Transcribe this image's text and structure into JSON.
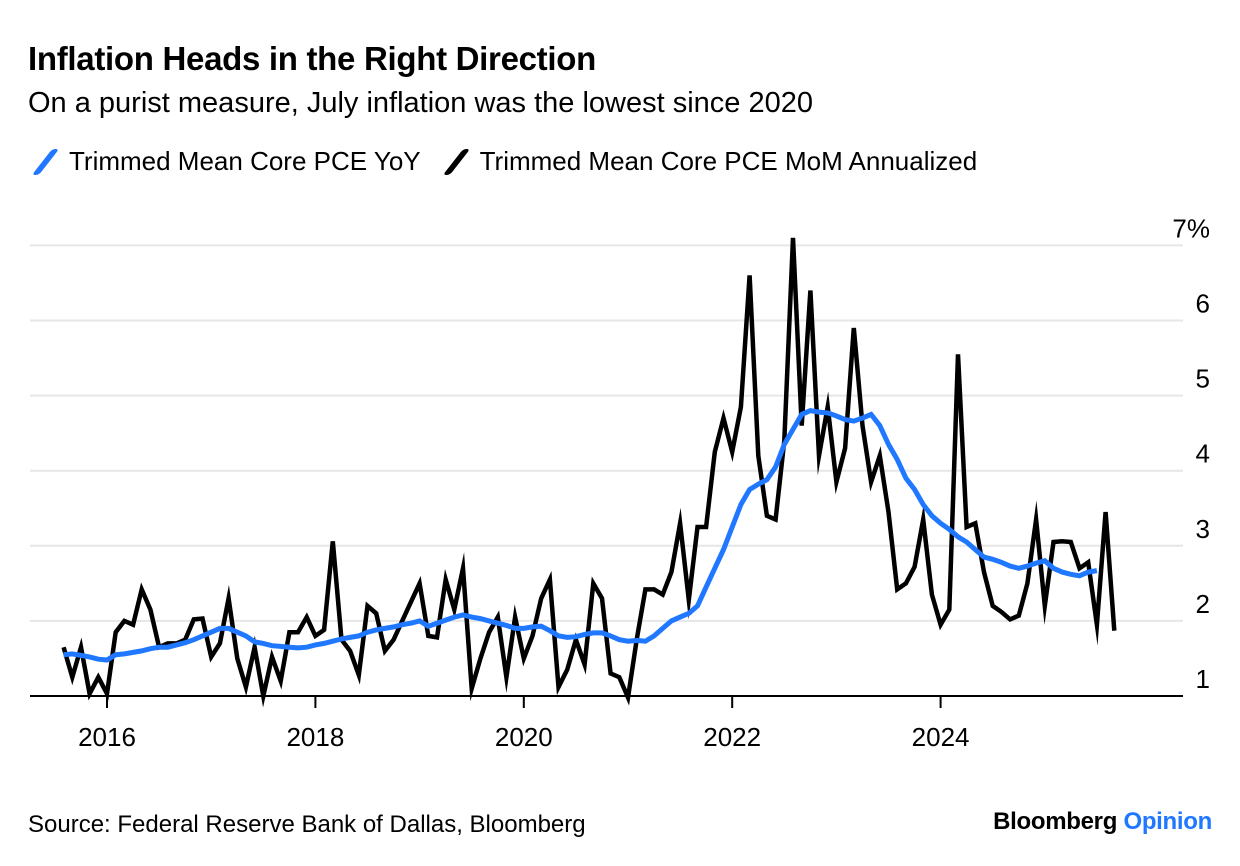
{
  "title": "Inflation Heads in the Right Direction",
  "subtitle": "On a purist measure, July inflation was the lowest since 2020",
  "footer": {
    "source": "Source: Federal Reserve Bank of Dallas, Bloomberg",
    "brand_primary": "Bloomberg",
    "brand_accent": "Opinion"
  },
  "colors": {
    "yoy": "#1f78ff",
    "mom": "#000000",
    "grid": "#e6e6e6",
    "axis": "#000000",
    "brand_accent": "#1f78ff"
  },
  "chart_data": {
    "type": "line",
    "title": "Inflation Heads in the Right Direction",
    "subtitle": "On a purist measure, July inflation was the lowest since 2020",
    "x_axis": {
      "type": "date",
      "range": [
        "2015-08",
        "2025-12"
      ],
      "ticks": [
        2016,
        2018,
        2020,
        2022,
        2024
      ]
    },
    "y_axis": {
      "side": "right",
      "range": [
        1,
        7
      ],
      "ticks": [
        1,
        2,
        3,
        4,
        5,
        6,
        7
      ],
      "tick_labels": [
        "1",
        "2",
        "3",
        "4",
        "5",
        "6",
        "7%"
      ]
    },
    "grid": true,
    "legend": "top-left",
    "series": [
      {
        "name": "Trimmed Mean Core PCE YoY",
        "color": "#1f78ff",
        "points": [
          [
            "2015-08",
            1.55
          ],
          [
            "2015-09",
            1.56
          ],
          [
            "2015-10",
            1.54
          ],
          [
            "2015-11",
            1.52
          ],
          [
            "2015-12",
            1.49
          ],
          [
            "2016-01",
            1.48
          ],
          [
            "2016-02",
            1.55
          ],
          [
            "2016-03",
            1.56
          ],
          [
            "2016-04",
            1.58
          ],
          [
            "2016-05",
            1.6
          ],
          [
            "2016-06",
            1.63
          ],
          [
            "2016-07",
            1.65
          ],
          [
            "2016-08",
            1.65
          ],
          [
            "2016-09",
            1.68
          ],
          [
            "2016-10",
            1.71
          ],
          [
            "2016-11",
            1.75
          ],
          [
            "2016-12",
            1.8
          ],
          [
            "2017-01",
            1.85
          ],
          [
            "2017-02",
            1.9
          ],
          [
            "2017-03",
            1.9
          ],
          [
            "2017-04",
            1.85
          ],
          [
            "2017-05",
            1.8
          ],
          [
            "2017-06",
            1.72
          ],
          [
            "2017-07",
            1.7
          ],
          [
            "2017-08",
            1.67
          ],
          [
            "2017-09",
            1.66
          ],
          [
            "2017-10",
            1.65
          ],
          [
            "2017-11",
            1.64
          ],
          [
            "2017-12",
            1.65
          ],
          [
            "2018-01",
            1.68
          ],
          [
            "2018-02",
            1.7
          ],
          [
            "2018-03",
            1.73
          ],
          [
            "2018-04",
            1.76
          ],
          [
            "2018-05",
            1.78
          ],
          [
            "2018-06",
            1.8
          ],
          [
            "2018-07",
            1.85
          ],
          [
            "2018-08",
            1.88
          ],
          [
            "2018-09",
            1.9
          ],
          [
            "2018-10",
            1.92
          ],
          [
            "2018-11",
            1.95
          ],
          [
            "2018-12",
            1.97
          ],
          [
            "2019-01",
            2.0
          ],
          [
            "2019-02",
            1.93
          ],
          [
            "2019-03",
            1.97
          ],
          [
            "2019-04",
            2.01
          ],
          [
            "2019-05",
            2.05
          ],
          [
            "2019-06",
            2.08
          ],
          [
            "2019-07",
            2.05
          ],
          [
            "2019-08",
            2.03
          ],
          [
            "2019-09",
            2.0
          ],
          [
            "2019-10",
            1.97
          ],
          [
            "2019-11",
            1.94
          ],
          [
            "2019-12",
            1.9
          ],
          [
            "2020-01",
            1.9
          ],
          [
            "2020-02",
            1.92
          ],
          [
            "2020-03",
            1.93
          ],
          [
            "2020-04",
            1.87
          ],
          [
            "2020-05",
            1.8
          ],
          [
            "2020-06",
            1.78
          ],
          [
            "2020-07",
            1.79
          ],
          [
            "2020-08",
            1.82
          ],
          [
            "2020-09",
            1.84
          ],
          [
            "2020-10",
            1.84
          ],
          [
            "2020-11",
            1.8
          ],
          [
            "2020-12",
            1.75
          ],
          [
            "2021-01",
            1.73
          ],
          [
            "2021-02",
            1.74
          ],
          [
            "2021-03",
            1.73
          ],
          [
            "2021-04",
            1.8
          ],
          [
            "2021-05",
            1.9
          ],
          [
            "2021-06",
            2.0
          ],
          [
            "2021-07",
            2.05
          ],
          [
            "2021-08",
            2.1
          ],
          [
            "2021-09",
            2.2
          ],
          [
            "2021-10",
            2.45
          ],
          [
            "2021-11",
            2.7
          ],
          [
            "2021-12",
            2.95
          ],
          [
            "2022-01",
            3.25
          ],
          [
            "2022-02",
            3.55
          ],
          [
            "2022-03",
            3.75
          ],
          [
            "2022-04",
            3.82
          ],
          [
            "2022-05",
            3.88
          ],
          [
            "2022-06",
            4.05
          ],
          [
            "2022-07",
            4.35
          ],
          [
            "2022-08",
            4.55
          ],
          [
            "2022-09",
            4.75
          ],
          [
            "2022-10",
            4.8
          ],
          [
            "2022-11",
            4.78
          ],
          [
            "2022-12",
            4.77
          ],
          [
            "2023-01",
            4.73
          ],
          [
            "2023-02",
            4.68
          ],
          [
            "2023-03",
            4.66
          ],
          [
            "2023-04",
            4.7
          ],
          [
            "2023-05",
            4.75
          ],
          [
            "2023-06",
            4.6
          ],
          [
            "2023-07",
            4.35
          ],
          [
            "2023-08",
            4.15
          ],
          [
            "2023-09",
            3.9
          ],
          [
            "2023-10",
            3.75
          ],
          [
            "2023-11",
            3.55
          ],
          [
            "2023-12",
            3.4
          ],
          [
            "2024-01",
            3.3
          ],
          [
            "2024-02",
            3.22
          ],
          [
            "2024-03",
            3.12
          ],
          [
            "2024-04",
            3.05
          ],
          [
            "2024-05",
            2.95
          ],
          [
            "2024-06",
            2.85
          ],
          [
            "2024-07",
            2.82
          ],
          [
            "2024-08",
            2.78
          ],
          [
            "2024-09",
            2.73
          ],
          [
            "2024-10",
            2.7
          ],
          [
            "2024-11",
            2.73
          ],
          [
            "2024-12",
            2.77
          ],
          [
            "2025-01",
            2.8
          ],
          [
            "2025-02",
            2.7
          ],
          [
            "2025-03",
            2.65
          ],
          [
            "2025-04",
            2.62
          ],
          [
            "2025-05",
            2.6
          ],
          [
            "2025-06",
            2.65
          ],
          [
            "2025-07",
            2.67
          ]
        ]
      },
      {
        "name": "Trimmed Mean Core PCE MoM Annualized",
        "color": "#000000",
        "points": [
          [
            "2015-08",
            1.65
          ],
          [
            "2015-09",
            1.25
          ],
          [
            "2015-10",
            1.65
          ],
          [
            "2015-11",
            1.03
          ],
          [
            "2015-12",
            1.25
          ],
          [
            "2016-01",
            1.03
          ],
          [
            "2016-02",
            1.85
          ],
          [
            "2016-03",
            2.0
          ],
          [
            "2016-04",
            1.95
          ],
          [
            "2016-05",
            2.42
          ],
          [
            "2016-06",
            2.15
          ],
          [
            "2016-07",
            1.65
          ],
          [
            "2016-08",
            1.7
          ],
          [
            "2016-09",
            1.7
          ],
          [
            "2016-10",
            1.75
          ],
          [
            "2016-11",
            2.02
          ],
          [
            "2016-12",
            2.03
          ],
          [
            "2017-01",
            1.52
          ],
          [
            "2017-02",
            1.7
          ],
          [
            "2017-03",
            2.3
          ],
          [
            "2017-04",
            1.5
          ],
          [
            "2017-05",
            1.12
          ],
          [
            "2017-06",
            1.65
          ],
          [
            "2017-07",
            1.0
          ],
          [
            "2017-08",
            1.52
          ],
          [
            "2017-09",
            1.2
          ],
          [
            "2017-10",
            1.85
          ],
          [
            "2017-11",
            1.85
          ],
          [
            "2017-12",
            2.05
          ],
          [
            "2018-01",
            1.8
          ],
          [
            "2018-02",
            1.88
          ],
          [
            "2018-03",
            3.06
          ],
          [
            "2018-04",
            1.75
          ],
          [
            "2018-05",
            1.6
          ],
          [
            "2018-06",
            1.28
          ],
          [
            "2018-07",
            2.2
          ],
          [
            "2018-08",
            2.1
          ],
          [
            "2018-09",
            1.6
          ],
          [
            "2018-10",
            1.75
          ],
          [
            "2018-11",
            2.0
          ],
          [
            "2018-12",
            2.25
          ],
          [
            "2019-01",
            2.5
          ],
          [
            "2019-02",
            1.8
          ],
          [
            "2019-03",
            1.78
          ],
          [
            "2019-04",
            2.55
          ],
          [
            "2019-05",
            2.15
          ],
          [
            "2019-06",
            2.7
          ],
          [
            "2019-07",
            1.1
          ],
          [
            "2019-08",
            1.5
          ],
          [
            "2019-09",
            1.85
          ],
          [
            "2019-10",
            2.05
          ],
          [
            "2019-11",
            1.25
          ],
          [
            "2019-12",
            2.05
          ],
          [
            "2020-01",
            1.5
          ],
          [
            "2020-02",
            1.8
          ],
          [
            "2020-03",
            2.3
          ],
          [
            "2020-04",
            2.55
          ],
          [
            "2020-05",
            1.12
          ],
          [
            "2020-06",
            1.35
          ],
          [
            "2020-07",
            1.75
          ],
          [
            "2020-08",
            1.42
          ],
          [
            "2020-09",
            2.5
          ],
          [
            "2020-10",
            2.3
          ],
          [
            "2020-11",
            1.3
          ],
          [
            "2020-12",
            1.25
          ],
          [
            "2021-01",
            0.98
          ],
          [
            "2021-02",
            1.75
          ],
          [
            "2021-03",
            2.42
          ],
          [
            "2021-04",
            2.42
          ],
          [
            "2021-05",
            2.35
          ],
          [
            "2021-06",
            2.65
          ],
          [
            "2021-07",
            3.3
          ],
          [
            "2021-08",
            2.28
          ],
          [
            "2021-09",
            3.25
          ],
          [
            "2021-10",
            3.25
          ],
          [
            "2021-11",
            4.25
          ],
          [
            "2021-12",
            4.7
          ],
          [
            "2022-01",
            4.25
          ],
          [
            "2022-02",
            4.85
          ],
          [
            "2022-03",
            6.6
          ],
          [
            "2022-04",
            4.2
          ],
          [
            "2022-05",
            3.4
          ],
          [
            "2022-06",
            3.35
          ],
          [
            "2022-07",
            4.4
          ],
          [
            "2022-08",
            7.1
          ],
          [
            "2022-09",
            4.6
          ],
          [
            "2022-10",
            6.4
          ],
          [
            "2022-11",
            4.2
          ],
          [
            "2022-12",
            4.85
          ],
          [
            "2023-01",
            3.85
          ],
          [
            "2023-02",
            4.3
          ],
          [
            "2023-03",
            5.9
          ],
          [
            "2023-04",
            4.6
          ],
          [
            "2023-05",
            3.85
          ],
          [
            "2023-06",
            4.2
          ],
          [
            "2023-07",
            3.45
          ],
          [
            "2023-08",
            2.42
          ],
          [
            "2023-09",
            2.5
          ],
          [
            "2023-10",
            2.72
          ],
          [
            "2023-11",
            3.35
          ],
          [
            "2023-12",
            2.35
          ],
          [
            "2024-01",
            1.95
          ],
          [
            "2024-02",
            2.15
          ],
          [
            "2024-03",
            5.55
          ],
          [
            "2024-04",
            3.25
          ],
          [
            "2024-05",
            3.3
          ],
          [
            "2024-06",
            2.65
          ],
          [
            "2024-07",
            2.2
          ],
          [
            "2024-08",
            2.12
          ],
          [
            "2024-09",
            2.02
          ],
          [
            "2024-10",
            2.07
          ],
          [
            "2024-11",
            2.5
          ],
          [
            "2024-12",
            3.35
          ],
          [
            "2025-01",
            2.2
          ],
          [
            "2025-02",
            3.05
          ],
          [
            "2025-03",
            3.06
          ],
          [
            "2025-04",
            3.05
          ],
          [
            "2025-05",
            2.7
          ],
          [
            "2025-06",
            2.78
          ],
          [
            "2025-07",
            1.95
          ],
          [
            "2025-08",
            3.45
          ],
          [
            "2025-09",
            1.87
          ]
        ]
      }
    ]
  }
}
